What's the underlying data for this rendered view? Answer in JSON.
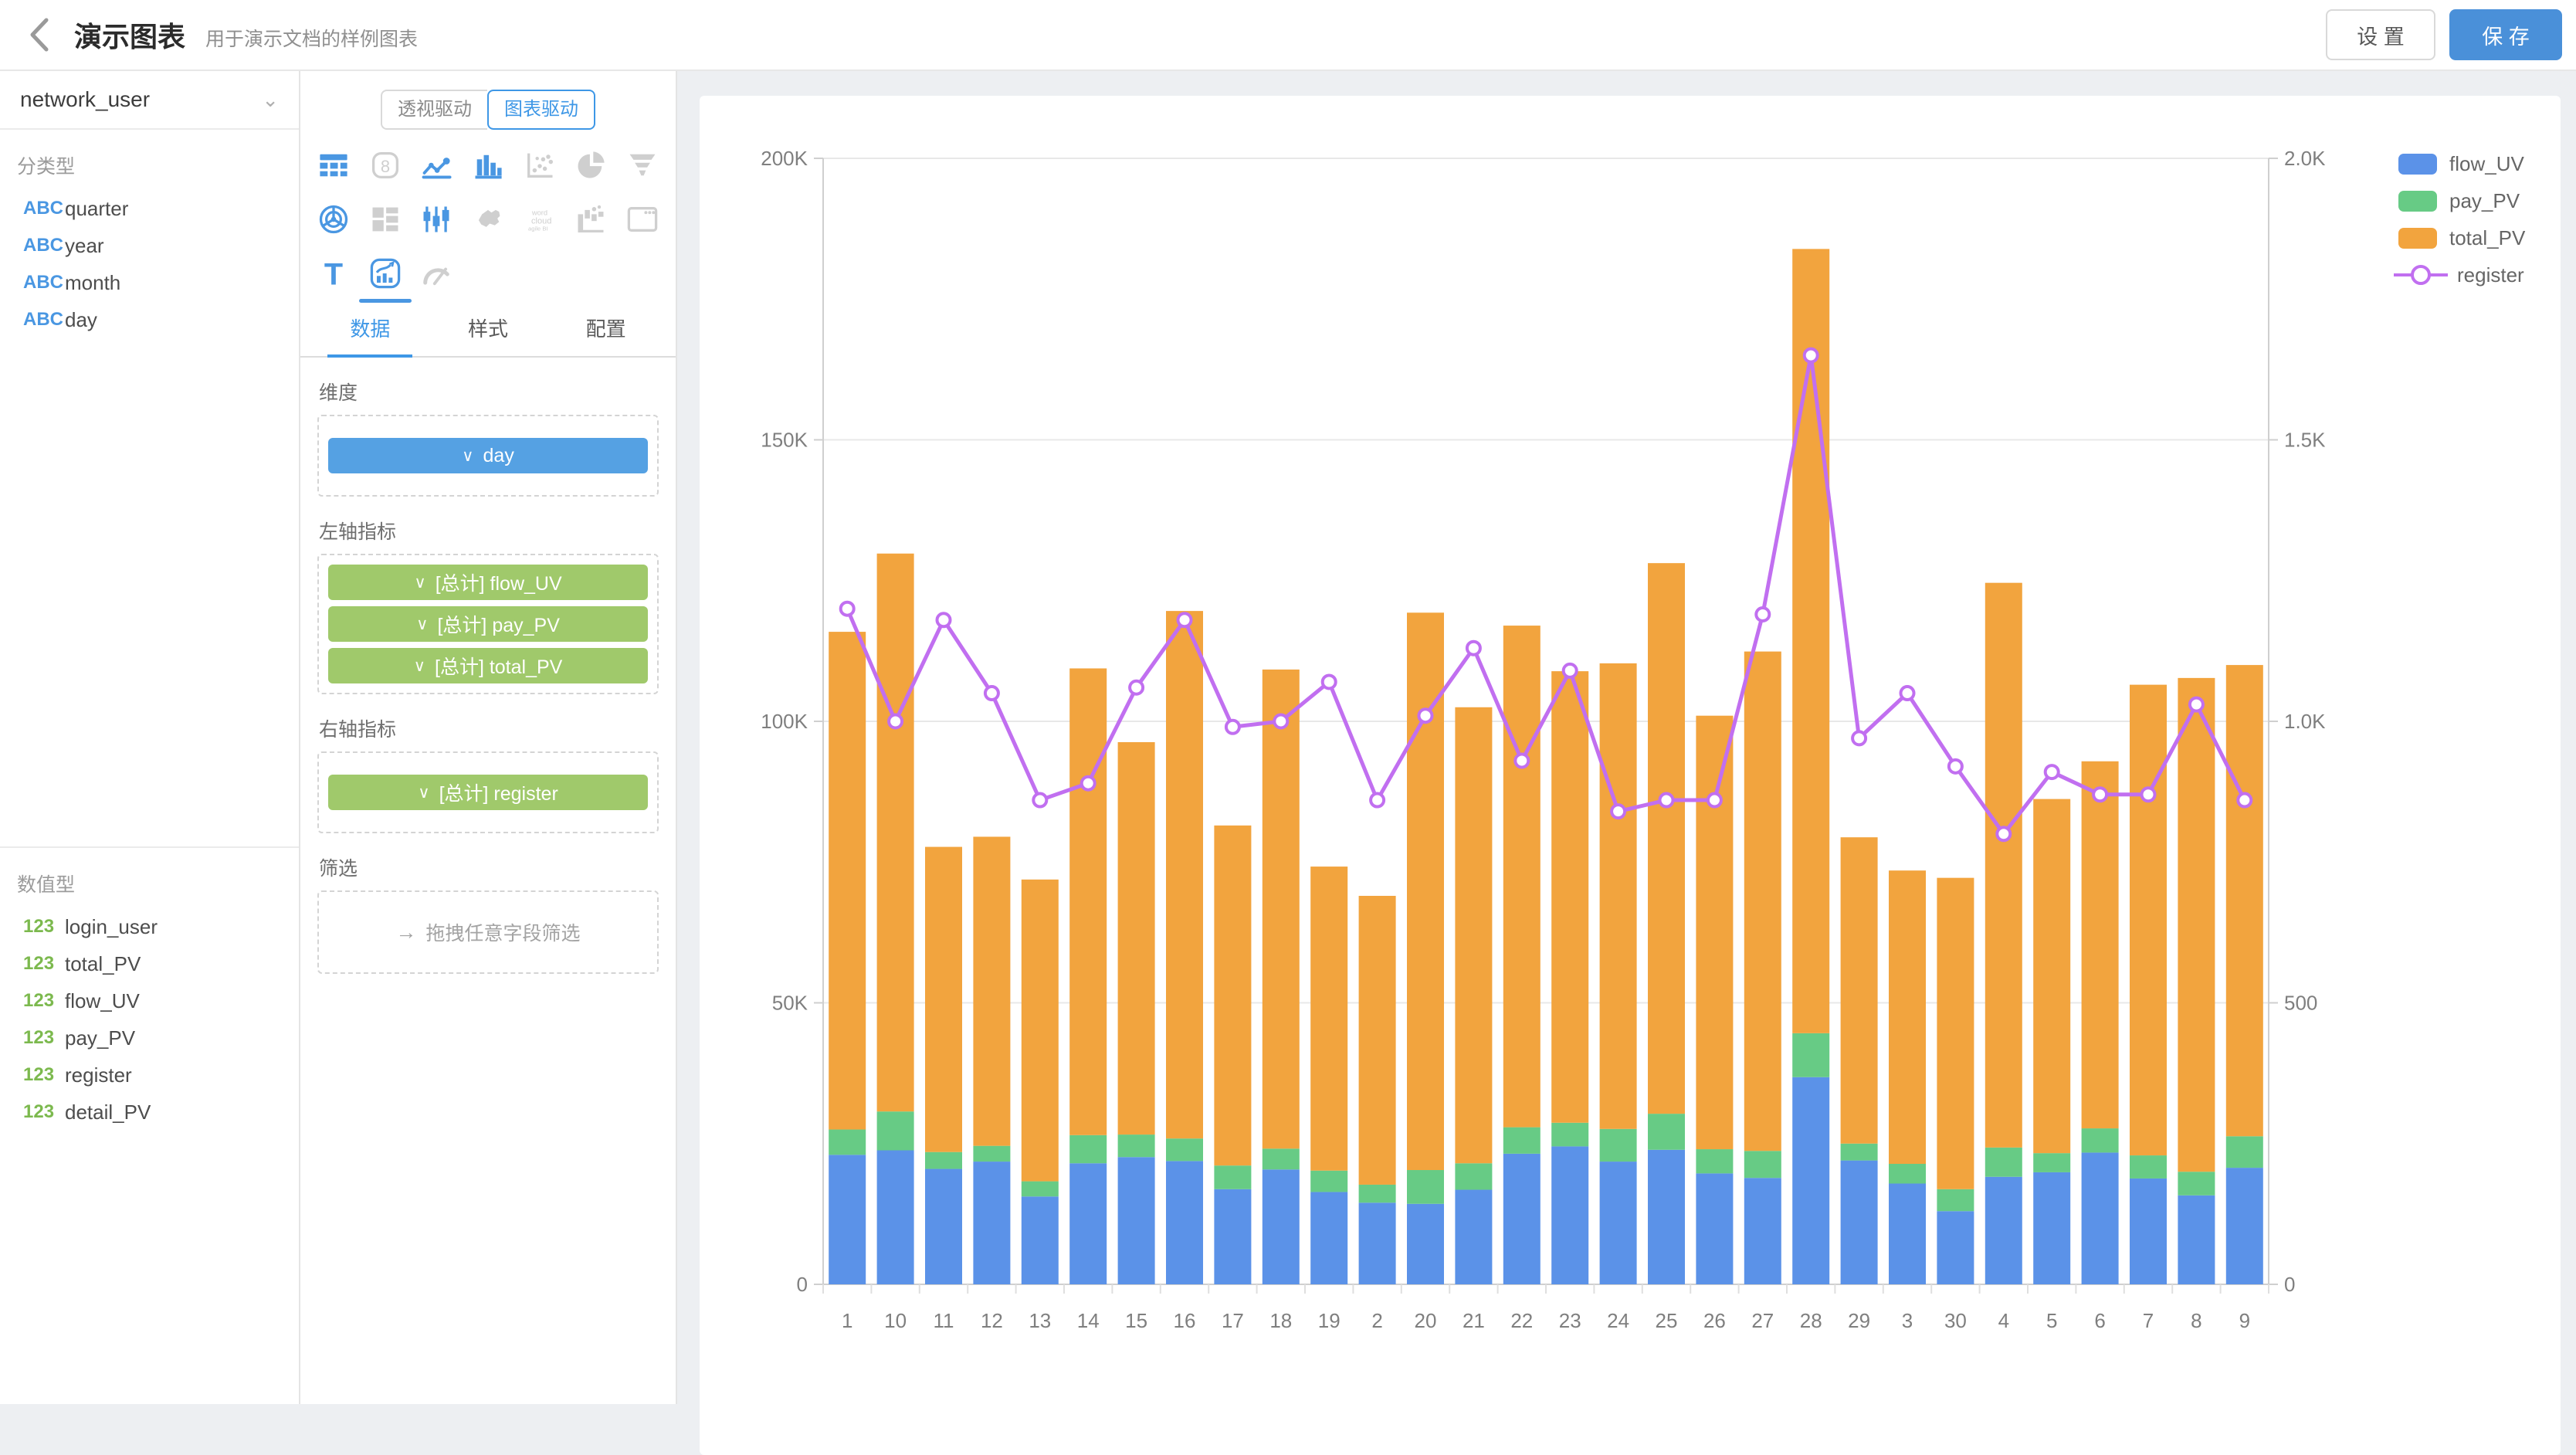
{
  "header": {
    "title": "演示图表",
    "subtitle": "用于演示文档的样例图表",
    "settings_label": "设 置",
    "save_label": "保 存"
  },
  "sidebar": {
    "dataset": "network_user",
    "category_section": "分类型",
    "category_fields": [
      {
        "badge": "ABC",
        "name": "quarter"
      },
      {
        "badge": "ABC",
        "name": "year"
      },
      {
        "badge": "ABC",
        "name": "month"
      },
      {
        "badge": "ABC",
        "name": "day"
      }
    ],
    "numeric_section": "数值型",
    "numeric_fields": [
      {
        "badge": "123",
        "name": "login_user"
      },
      {
        "badge": "123",
        "name": "total_PV"
      },
      {
        "badge": "123",
        "name": "flow_UV"
      },
      {
        "badge": "123",
        "name": "pay_PV"
      },
      {
        "badge": "123",
        "name": "register"
      },
      {
        "badge": "123",
        "name": "detail_PV"
      }
    ]
  },
  "panel": {
    "mode_pivot": "透视驱动",
    "mode_chart": "图表驱动",
    "chart_type_icons": [
      {
        "name": "table-icon",
        "enabled": true,
        "active": false
      },
      {
        "name": "indicator-card-icon",
        "enabled": false,
        "active": false
      },
      {
        "name": "line-chart-icon",
        "enabled": true,
        "active": false
      },
      {
        "name": "bar-chart-icon",
        "enabled": true,
        "active": false
      },
      {
        "name": "scatter-chart-icon",
        "enabled": false,
        "active": false
      },
      {
        "name": "pie-chart-icon",
        "enabled": false,
        "active": false
      },
      {
        "name": "funnel-chart-icon",
        "enabled": false,
        "active": false
      },
      {
        "name": "radar-chart-icon",
        "enabled": true,
        "active": false
      },
      {
        "name": "treemap-icon",
        "enabled": false,
        "active": false
      },
      {
        "name": "candlestick-icon",
        "enabled": true,
        "active": false
      },
      {
        "name": "map-icon",
        "enabled": false,
        "active": false
      },
      {
        "name": "word-cloud-icon",
        "enabled": false,
        "active": false
      },
      {
        "name": "waterfall-icon",
        "enabled": false,
        "active": false
      },
      {
        "name": "web-frame-icon",
        "enabled": false,
        "active": false
      },
      {
        "name": "text-icon",
        "enabled": true,
        "active": false
      },
      {
        "name": "combo-chart-icon",
        "enabled": true,
        "active": true
      },
      {
        "name": "gauge-icon",
        "enabled": false,
        "active": false
      }
    ],
    "tabs": [
      "数据",
      "样式",
      "配置"
    ],
    "dimension_label": "维度",
    "dimension_chips": [
      "day"
    ],
    "left_axis_label": "左轴指标",
    "left_axis_chips": [
      "[总计] flow_UV",
      "[总计] pay_PV",
      "[总计] total_PV"
    ],
    "right_axis_label": "右轴指标",
    "right_axis_chips": [
      "[总计] register"
    ],
    "filter_label": "筛选",
    "filter_hint": "拖拽任意字段筛选"
  },
  "colors": {
    "accent_blue": "#3e97e6",
    "save_button": "#4a90d9",
    "chip_dimension": "#55a1e3",
    "chip_metric": "#a0c96b",
    "badge_text": "#4a97e2",
    "badge_number": "#7cb94e",
    "page_background": "#edeff2",
    "grid_line": "#e8e8e8",
    "axis_line": "#cfcfcf",
    "axis_text": "#7f7f7f"
  },
  "chart_data": {
    "type": "bar",
    "subtype": "dual-axis stacked bars with line overlay",
    "categories": [
      "1",
      "10",
      "11",
      "12",
      "13",
      "14",
      "15",
      "16",
      "17",
      "18",
      "19",
      "2",
      "20",
      "21",
      "22",
      "23",
      "24",
      "25",
      "26",
      "27",
      "28",
      "29",
      "3",
      "30",
      "4",
      "5",
      "6",
      "7",
      "8",
      "9"
    ],
    "series": [
      {
        "name": "flow_UV",
        "type": "bar",
        "axis": "left",
        "color": "#5b92e8",
        "values": [
          23000,
          23800,
          20500,
          21800,
          15600,
          21500,
          22600,
          21900,
          16900,
          20400,
          16400,
          14500,
          14300,
          16800,
          23200,
          24500,
          21800,
          23900,
          19700,
          18900,
          36800,
          22000,
          17900,
          13000,
          19100,
          19900,
          23400,
          18800,
          15800,
          20700
        ]
      },
      {
        "name": "pay_PV",
        "type": "bar",
        "axis": "left",
        "color": "#67cb85",
        "values": [
          4500,
          6900,
          3000,
          2800,
          2700,
          5000,
          4000,
          4000,
          4200,
          3700,
          3800,
          3200,
          6000,
          4700,
          4700,
          4200,
          5800,
          6400,
          4300,
          4800,
          7800,
          3000,
          3500,
          3900,
          5200,
          3400,
          4300,
          4100,
          4200,
          5600
        ]
      },
      {
        "name": "total_PV",
        "type": "bar",
        "axis": "left",
        "color": "#f2a43e",
        "values": [
          88400,
          99100,
          54200,
          54900,
          53600,
          82900,
          69700,
          93700,
          60400,
          85100,
          54000,
          51300,
          99000,
          81000,
          89100,
          80200,
          82700,
          97800,
          77000,
          88700,
          139300,
          54400,
          52100,
          55300,
          100300,
          62900,
          65200,
          83600,
          87700,
          83700
        ]
      },
      {
        "name": "register",
        "type": "line",
        "axis": "right",
        "color": "#c16ff0",
        "values": [
          1200,
          1000,
          1180,
          1050,
          860,
          890,
          1060,
          1180,
          990,
          1000,
          1070,
          860,
          1010,
          1130,
          930,
          1090,
          840,
          860,
          860,
          1190,
          1650,
          970,
          1050,
          920,
          800,
          910,
          870,
          870,
          1030,
          860
        ]
      }
    ],
    "left_axis": {
      "max": 200000,
      "tick_values": [
        0,
        50000,
        100000,
        150000,
        200000
      ],
      "tick_labels": [
        "0",
        "50K",
        "100K",
        "150K",
        "200K"
      ]
    },
    "right_axis": {
      "max": 2000,
      "tick_values": [
        0,
        500,
        1000,
        1500,
        2000
      ],
      "tick_labels": [
        "0",
        "500",
        "1.0K",
        "1.5K",
        "2.0K"
      ]
    },
    "grid": true,
    "legend_position": "top-right",
    "title": ""
  }
}
